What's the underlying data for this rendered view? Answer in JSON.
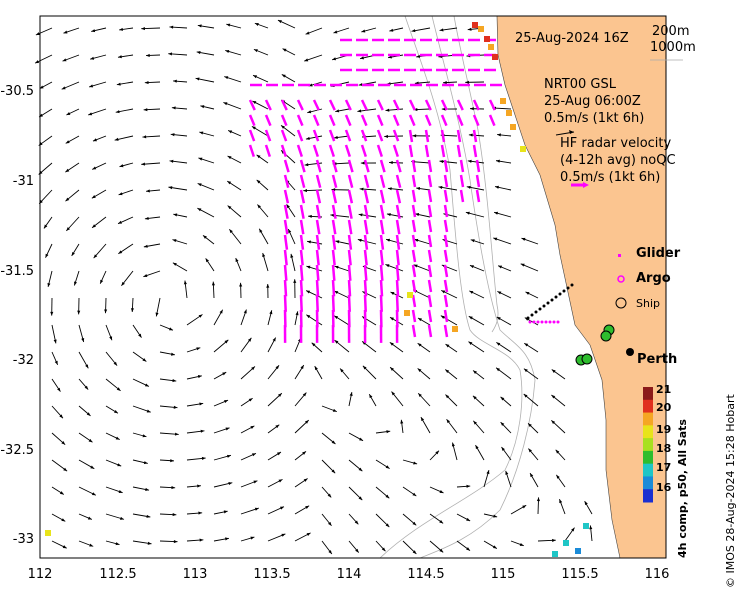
{
  "title": {
    "datetime": "25-Aug-2024 16Z"
  },
  "contours": {
    "c1": "200m",
    "c2": "1000m"
  },
  "model_legend": {
    "name": "NRT00 GSL",
    "time": "25-Aug 06:00Z",
    "scale": "0.5m/s (1kt 6h)"
  },
  "hf_legend": {
    "line1": "HF radar velocity",
    "line2": "(4-12h avg) noQC",
    "scale": "0.5m/s (1kt 6h)"
  },
  "platforms": {
    "glider": "Glider",
    "argo": "Argo",
    "ship": "Ship"
  },
  "place": {
    "perth": "Perth"
  },
  "x_ticks": [
    "112",
    "112.5",
    "113",
    "113.5",
    "114",
    "114.5",
    "115",
    "115.5",
    "116"
  ],
  "y_ticks": [
    "-30.5",
    "-31",
    "-31.5",
    "-32",
    "-32.5",
    "-33"
  ],
  "colorbar": {
    "title": "4h comp, p50, All Sats",
    "ticks": [
      "21",
      "20",
      "19",
      "18",
      "17",
      "16"
    ],
    "colors": [
      "#8b1a1a",
      "#e0301e",
      "#f5a623",
      "#e8e41a",
      "#a8e020",
      "#2ebd2e",
      "#1fc6c6",
      "#1a8bd8",
      "#1a2fd0"
    ]
  },
  "credit": "© IMOS 28-Aug-2024 15:28 Hobart",
  "colors": {
    "land": "#fbc590",
    "hf": "#ff00ff",
    "arrow": "#000000",
    "contour": "#b0b0b0"
  }
}
